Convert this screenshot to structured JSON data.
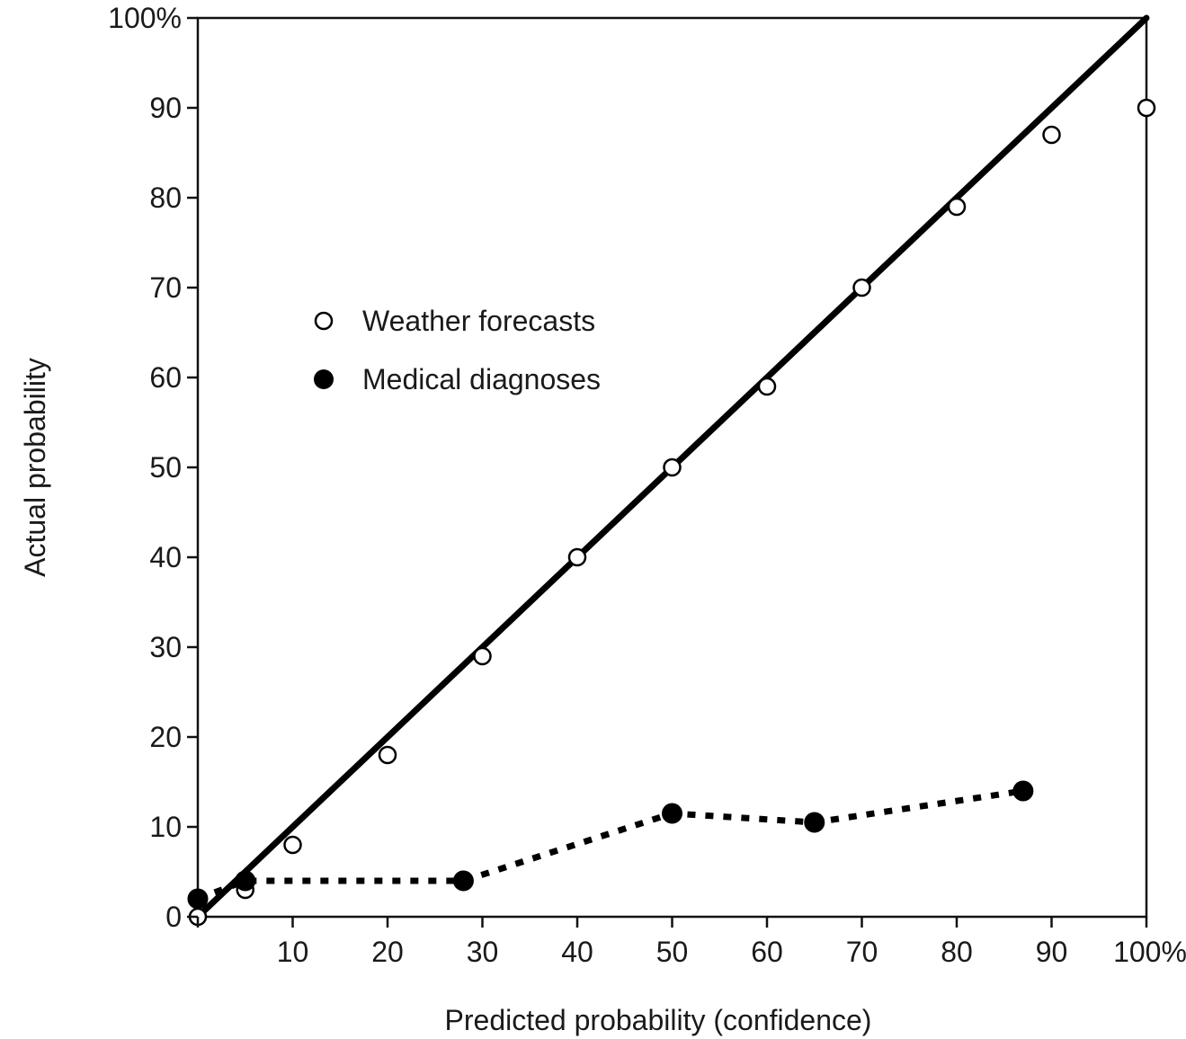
{
  "chart_data": {
    "type": "scatter",
    "title": "",
    "xlabel": "Predicted probability (confidence)",
    "ylabel": "Actual probability",
    "xlim": [
      0,
      100
    ],
    "ylim": [
      0,
      100
    ],
    "grid": false,
    "legend_position": "middle-left",
    "x_ticks": [
      {
        "value": 0,
        "label": ""
      },
      {
        "value": 10,
        "label": "10"
      },
      {
        "value": 20,
        "label": "20"
      },
      {
        "value": 30,
        "label": "30"
      },
      {
        "value": 40,
        "label": "40"
      },
      {
        "value": 50,
        "label": "50"
      },
      {
        "value": 60,
        "label": "60"
      },
      {
        "value": 70,
        "label": "70"
      },
      {
        "value": 80,
        "label": "80"
      },
      {
        "value": 90,
        "label": "90"
      },
      {
        "value": 100,
        "label": "100%"
      }
    ],
    "y_ticks": [
      {
        "value": 0,
        "label": "0"
      },
      {
        "value": 10,
        "label": "10"
      },
      {
        "value": 20,
        "label": "20"
      },
      {
        "value": 30,
        "label": "30"
      },
      {
        "value": 40,
        "label": "40"
      },
      {
        "value": 50,
        "label": "50"
      },
      {
        "value": 60,
        "label": "60"
      },
      {
        "value": 70,
        "label": "70"
      },
      {
        "value": 80,
        "label": "80"
      },
      {
        "value": 90,
        "label": "90"
      },
      {
        "value": 100,
        "label": "100%"
      }
    ],
    "reference_line": {
      "style": "solid",
      "color": "#000000",
      "points": [
        [
          0,
          0
        ],
        [
          100,
          100
        ]
      ]
    },
    "series": [
      {
        "name": "Weather forecasts",
        "marker": "open-circle",
        "line": "none",
        "color": "#000000",
        "x": [
          0,
          5,
          10,
          20,
          30,
          40,
          50,
          60,
          70,
          80,
          90,
          100
        ],
        "y": [
          0,
          3,
          8,
          18,
          29,
          40,
          50,
          59,
          70,
          79,
          87,
          90
        ]
      },
      {
        "name": "Medical diagnoses",
        "marker": "filled-circle",
        "line": "dotted",
        "color": "#000000",
        "x": [
          0,
          5,
          28,
          50,
          65,
          87
        ],
        "y": [
          2,
          4,
          4,
          11.5,
          10.5,
          14
        ]
      }
    ]
  }
}
